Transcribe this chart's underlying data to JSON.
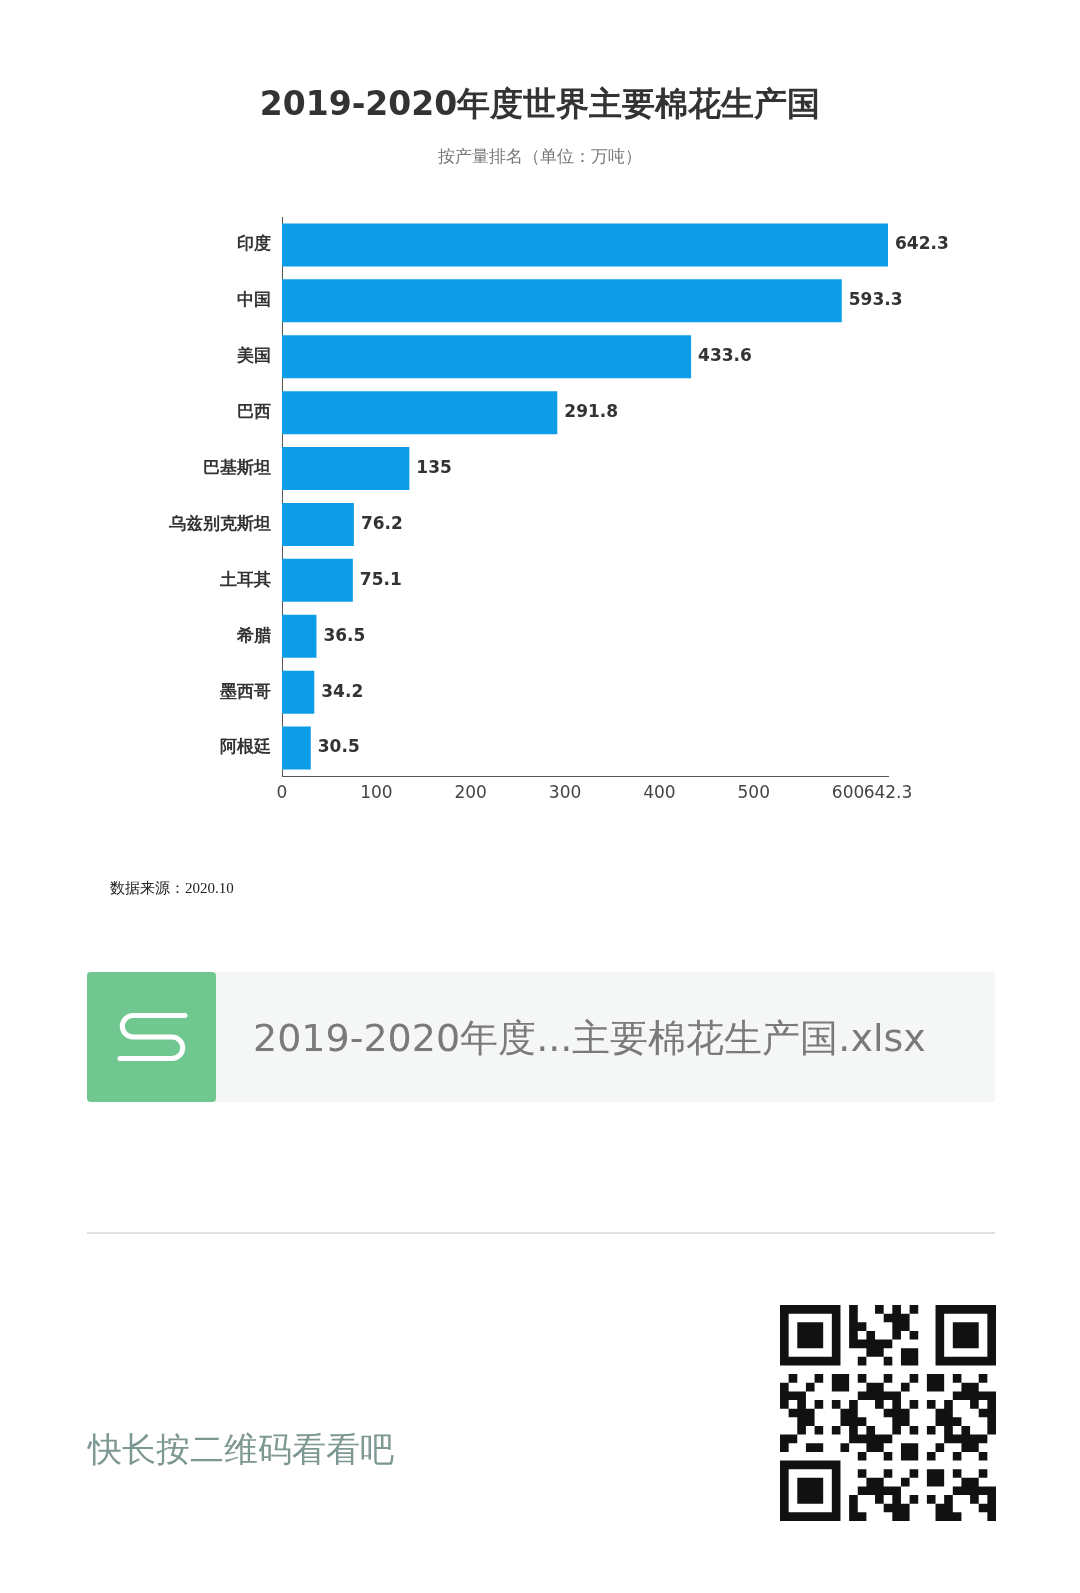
{
  "chart_data": {
    "type": "bar",
    "orientation": "horizontal",
    "title": "2019-2020年度世界主要棉花生产国",
    "subtitle": "按产量排名（单位：万吨）",
    "categories": [
      "印度",
      "中国",
      "美国",
      "巴西",
      "巴基斯坦",
      "乌兹别克斯坦",
      "土耳其",
      "希腊",
      "墨西哥",
      "阿根廷"
    ],
    "values": [
      642.3,
      593.3,
      433.6,
      291.8,
      135,
      76.2,
      75.1,
      36.5,
      34.2,
      30.5
    ],
    "color": "#0d9de6",
    "xlim": [
      0,
      642.3
    ],
    "xticks": [
      0,
      100,
      200,
      300,
      400,
      500,
      600,
      642.3
    ],
    "data_labels": true,
    "annotations": [
      "数据来源：2020.10",
      "2019-2020年度...主要棉花生产国.xlsx",
      "快长按二维码看看吧"
    ]
  }
}
